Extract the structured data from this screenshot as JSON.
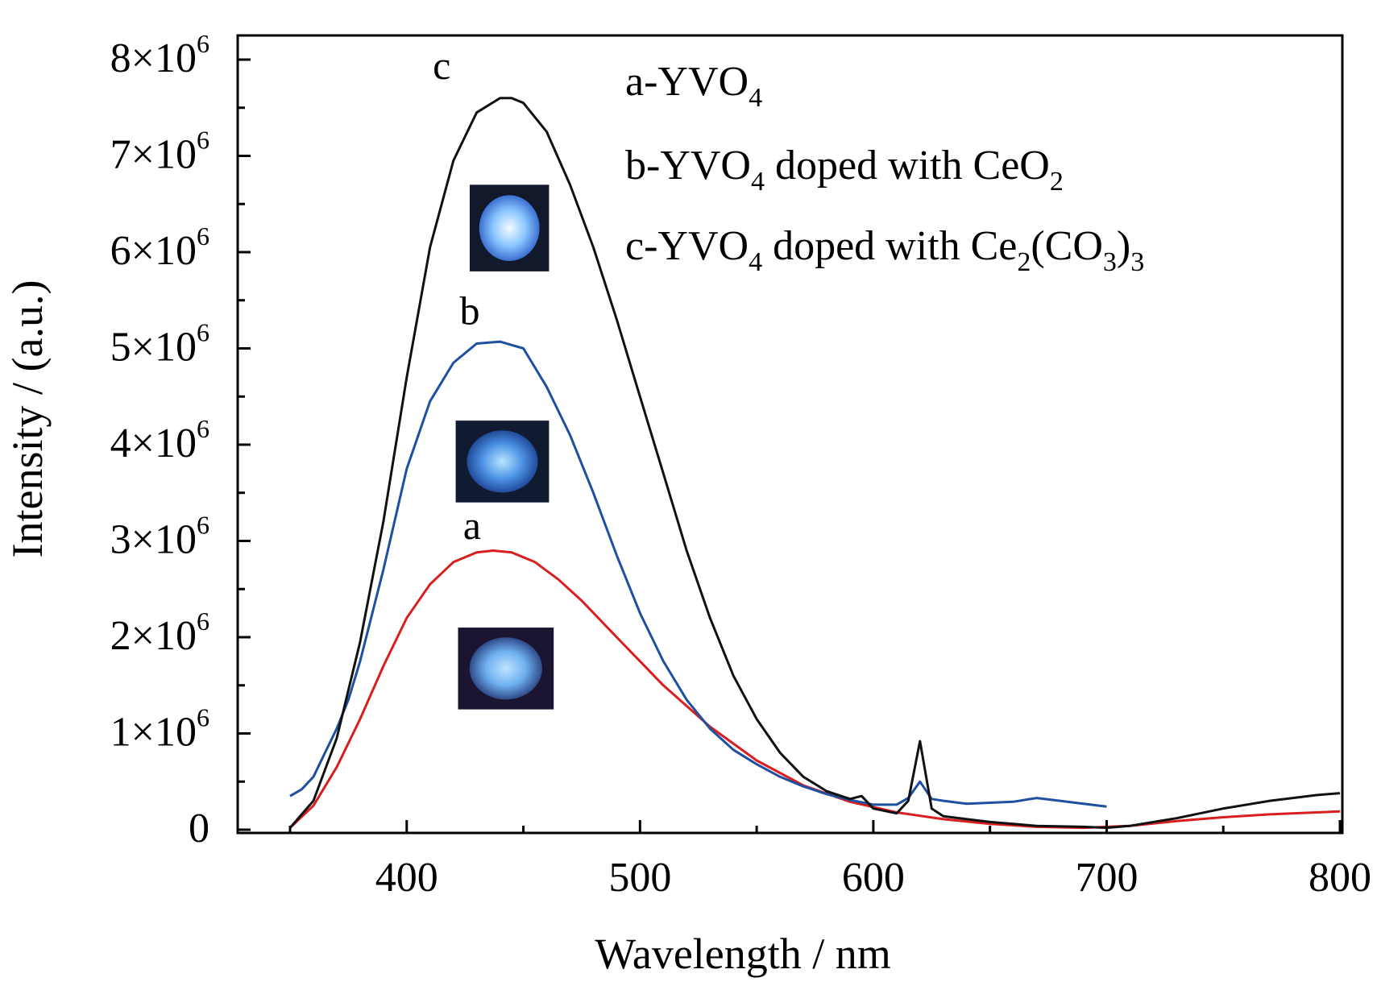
{
  "chart_data": {
    "type": "line",
    "xlabel": "Wavelength / nm",
    "ylabel": "Intensity / (a.u.)",
    "xlim": [
      325,
      800
    ],
    "ylim": [
      0,
      8.5
    ],
    "y_unit_multiplier": 1000000,
    "x_ticks": [
      400,
      500,
      600,
      700,
      800
    ],
    "x_minor_ticks": [
      350,
      450,
      550,
      650,
      750
    ],
    "y_ticks": [
      {
        "value": 0,
        "mantissa": "0",
        "exp": ""
      },
      {
        "value": 1,
        "mantissa": "1×10",
        "exp": "6"
      },
      {
        "value": 2,
        "mantissa": "2×10",
        "exp": "6"
      },
      {
        "value": 3,
        "mantissa": "3×10",
        "exp": "6"
      },
      {
        "value": 4,
        "mantissa": "4×10",
        "exp": "6"
      },
      {
        "value": 5,
        "mantissa": "5×10",
        "exp": "6"
      },
      {
        "value": 6,
        "mantissa": "6×10",
        "exp": "6"
      },
      {
        "value": 7,
        "mantissa": "7×10",
        "exp": "6"
      },
      {
        "value": 8,
        "mantissa": "8×10",
        "exp": "6"
      }
    ],
    "y_minor_ticks": [
      0.5,
      1.5,
      2.5,
      3.5,
      4.5,
      5.5,
      6.5,
      7.5
    ],
    "grid": false,
    "legend_placement": "top-right",
    "legend": [
      {
        "parts": [
          {
            "t": "a-YVO"
          },
          {
            "t": "4",
            "sub": true
          }
        ]
      },
      {
        "parts": [
          {
            "t": "b-YVO"
          },
          {
            "t": "4",
            "sub": true
          },
          {
            "t": " doped with CeO"
          },
          {
            "t": "2",
            "sub": true
          }
        ]
      },
      {
        "parts": [
          {
            "t": "c-YVO"
          },
          {
            "t": "4",
            "sub": true
          },
          {
            "t": " doped with Ce"
          },
          {
            "t": "2",
            "sub": true
          },
          {
            "t": "(CO"
          },
          {
            "t": "3",
            "sub": true
          },
          {
            "t": ")"
          },
          {
            "t": "3",
            "sub": true
          }
        ]
      }
    ],
    "series": [
      {
        "name": "a",
        "color": "#d81e1e",
        "x": [
          350,
          360,
          370,
          380,
          390,
          400,
          410,
          420,
          430,
          437,
          445,
          455,
          465,
          475,
          490,
          510,
          530,
          550,
          570,
          590,
          610,
          630,
          650,
          670,
          690,
          710,
          730,
          750,
          770,
          790,
          800
        ],
        "y": [
          0.02,
          0.25,
          0.65,
          1.15,
          1.7,
          2.2,
          2.55,
          2.78,
          2.88,
          2.9,
          2.88,
          2.78,
          2.6,
          2.38,
          2.0,
          1.5,
          1.07,
          0.72,
          0.46,
          0.29,
          0.18,
          0.11,
          0.06,
          0.03,
          0.02,
          0.04,
          0.09,
          0.13,
          0.16,
          0.18,
          0.19
        ]
      },
      {
        "name": "b",
        "color": "#1f4fa0",
        "x": [
          350,
          355,
          360,
          365,
          370,
          375,
          380,
          390,
          400,
          410,
          420,
          430,
          440,
          450,
          460,
          470,
          480,
          490,
          500,
          510,
          520,
          530,
          540,
          550,
          560,
          570,
          580,
          590,
          600,
          610,
          615,
          620,
          625,
          630,
          640,
          650,
          660,
          670,
          680,
          690,
          700
        ],
        "y": [
          0.35,
          0.42,
          0.55,
          0.8,
          1.05,
          1.35,
          1.75,
          2.7,
          3.75,
          4.45,
          4.85,
          5.05,
          5.07,
          5.0,
          4.6,
          4.1,
          3.5,
          2.85,
          2.25,
          1.75,
          1.35,
          1.05,
          0.83,
          0.68,
          0.55,
          0.45,
          0.37,
          0.31,
          0.26,
          0.26,
          0.33,
          0.5,
          0.32,
          0.3,
          0.27,
          0.28,
          0.29,
          0.33,
          0.3,
          0.27,
          0.24
        ]
      },
      {
        "name": "c",
        "color": "#111111",
        "x": [
          350,
          360,
          370,
          380,
          390,
          400,
          410,
          420,
          430,
          440,
          445,
          450,
          460,
          470,
          480,
          490,
          500,
          510,
          520,
          530,
          540,
          550,
          560,
          570,
          580,
          590,
          595,
          600,
          610,
          615,
          620,
          625,
          630,
          650,
          670,
          690,
          700,
          710,
          730,
          750,
          770,
          790,
          800
        ],
        "y": [
          0.02,
          0.3,
          0.95,
          1.95,
          3.2,
          4.7,
          6.05,
          6.95,
          7.45,
          7.6,
          7.6,
          7.55,
          7.25,
          6.7,
          6.05,
          5.3,
          4.5,
          3.7,
          2.9,
          2.2,
          1.6,
          1.15,
          0.8,
          0.55,
          0.4,
          0.32,
          0.35,
          0.22,
          0.17,
          0.3,
          0.92,
          0.22,
          0.14,
          0.08,
          0.04,
          0.03,
          0.02,
          0.04,
          0.12,
          0.22,
          0.3,
          0.36,
          0.38
        ]
      }
    ],
    "curve_labels": [
      {
        "text": "c",
        "x": 415,
        "y": 7.8
      },
      {
        "text": "b",
        "x": 427,
        "y": 5.25
      },
      {
        "text": "a",
        "x": 428,
        "y": 3.02
      }
    ],
    "insets": [
      {
        "name": "photo-c",
        "x0": 427,
        "x1": 461,
        "y0": 5.8,
        "y1": 6.7,
        "bg": "#12192b",
        "glow": [
          "#f4fbff",
          "#8ac6ff",
          "#3c6fd0"
        ]
      },
      {
        "name": "photo-b",
        "x0": 421,
        "x1": 461,
        "y0": 3.4,
        "y1": 4.25,
        "bg": "#101a30",
        "glow": [
          "#b9e6ff",
          "#4f95e6",
          "#214a9a"
        ]
      },
      {
        "name": "photo-a",
        "x0": 422,
        "x1": 463,
        "y0": 1.25,
        "y1": 2.1,
        "bg": "#1b1531",
        "glow": [
          "#bfe4ff",
          "#6fb0f0",
          "#2f4a88"
        ]
      }
    ]
  }
}
